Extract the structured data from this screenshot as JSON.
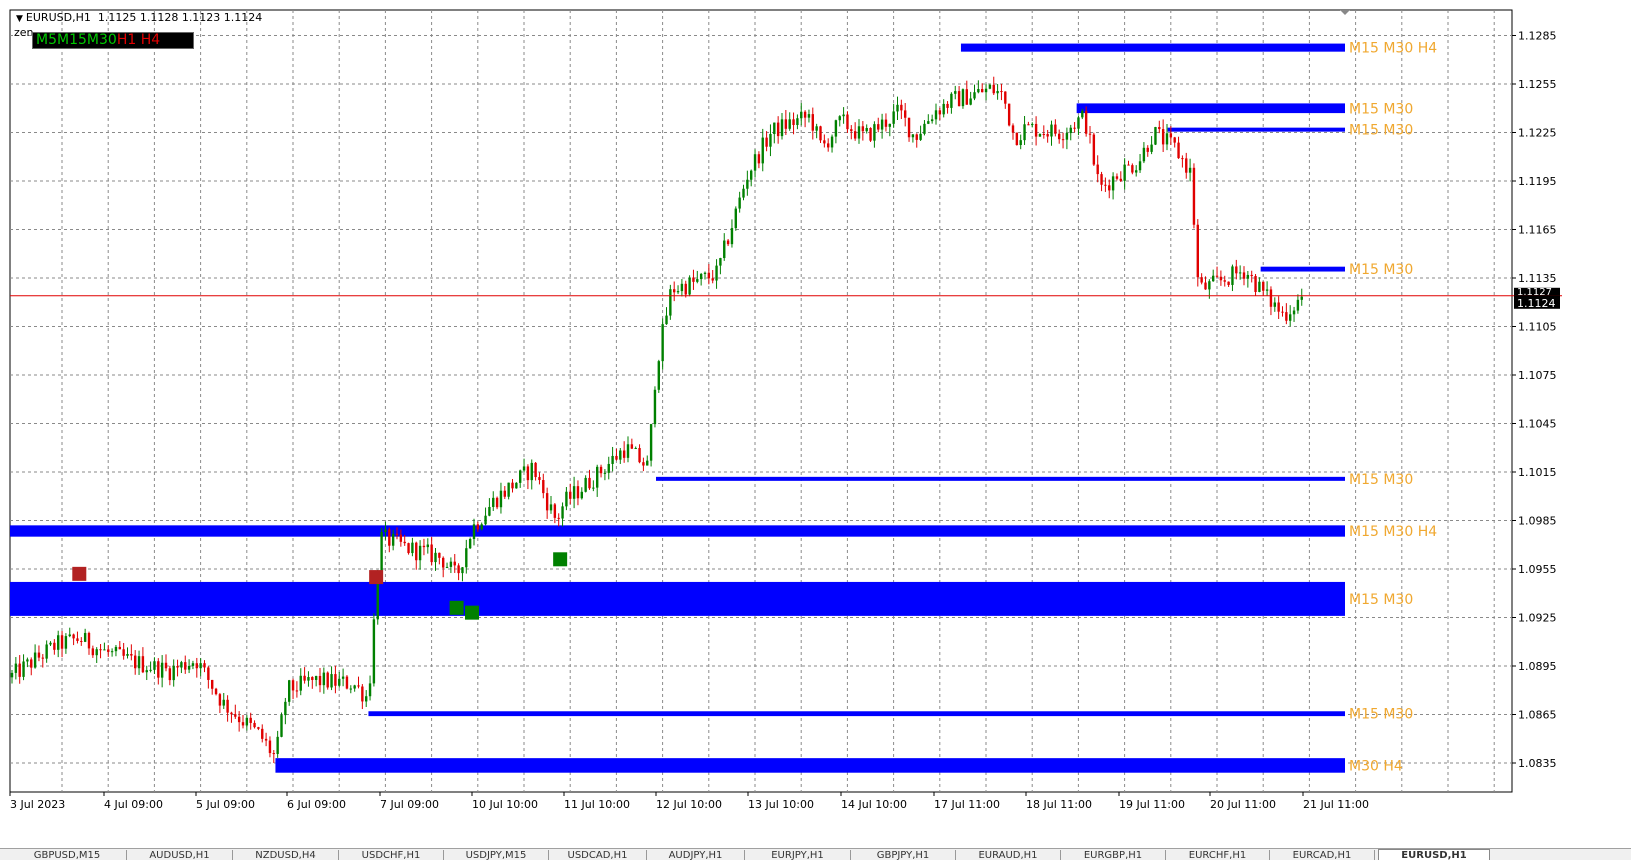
{
  "header": {
    "symbol_tf": "EURUSD,H1",
    "ohlc": "1.1125 1.1128 1.1123 1.1124",
    "indicator": "zen"
  },
  "timeframes": [
    {
      "label": "M5",
      "color": "#00c800"
    },
    {
      "label": "M15",
      "color": "#00c800"
    },
    {
      "label": "M30",
      "color": "#00c800"
    },
    {
      "label": "H1",
      "color": "#e00000"
    },
    {
      "label": "H4",
      "color": "#e00000"
    }
  ],
  "chart_data": {
    "type": "candlestick",
    "symbol": "EURUSD",
    "timeframe": "H1",
    "ylim": [
      1.0825,
      1.1295
    ],
    "y_ticks": [
      "1.1285",
      "1.1255",
      "1.1225",
      "1.1195",
      "1.1165",
      "1.1135",
      "1.1105",
      "1.1075",
      "1.1045",
      "1.1015",
      "1.0985",
      "1.0955",
      "1.0925",
      "1.0895",
      "1.0865",
      "1.0835"
    ],
    "x_ticks": [
      "3 Jul 2023",
      "4 Jul 09:00",
      "5 Jul 09:00",
      "6 Jul 09:00",
      "7 Jul 09:00",
      "10 Jul 10:00",
      "11 Jul 10:00",
      "12 Jul 10:00",
      "13 Jul 10:00",
      "14 Jul 10:00",
      "17 Jul 11:00",
      "18 Jul 11:00",
      "19 Jul 11:00",
      "20 Jul 11:00",
      "21 Jul 11:00"
    ],
    "current_price": "1.1124",
    "price_box_label": "1.1127",
    "grid": true,
    "colors": {
      "bull": "#008000",
      "bear": "#e00000",
      "zone": "#0000ff",
      "zone_label": "#f0a830",
      "price_line": "#e00000",
      "sell_marker": "#b22222",
      "buy_marker": "#008000"
    },
    "path": [
      [
        "3 Jul 2023",
        1.0888
      ],
      [
        "3 Jul 12:00",
        1.0908
      ],
      [
        "3 Jul 18:00",
        1.0912
      ],
      [
        "4 Jul 09:00",
        1.0904
      ],
      [
        "4 Jul 16:00",
        1.0898
      ],
      [
        "5 Jul 02:00",
        1.0892
      ],
      [
        "5 Jul 09:00",
        1.0899
      ],
      [
        "5 Jul 16:00",
        1.0872
      ],
      [
        "6 Jul 02:00",
        1.0852
      ],
      [
        "6 Jul 06:00",
        1.0838
      ],
      [
        "6 Jul 09:00",
        1.088
      ],
      [
        "6 Jul 16:00",
        1.0886
      ],
      [
        "7 Jul 02:00",
        1.0884
      ],
      [
        "7 Jul 06:00",
        1.0875
      ],
      [
        "7 Jul 09:00",
        1.0975
      ],
      [
        "7 Jul 16:00",
        1.0968
      ],
      [
        "10 Jul 02:00",
        1.0962
      ],
      [
        "10 Jul 06:00",
        1.095
      ],
      [
        "10 Jul 10:00",
        1.098
      ],
      [
        "10 Jul 16:00",
        1.0998
      ],
      [
        "11 Jul 02:00",
        1.1018
      ],
      [
        "11 Jul 05:00",
        1.1
      ],
      [
        "11 Jul 08:00",
        1.0985
      ],
      [
        "11 Jul 10:00",
        1.0996
      ],
      [
        "11 Jul 18:00",
        1.1012
      ],
      [
        "12 Jul 02:00",
        1.103
      ],
      [
        "12 Jul 08:00",
        1.1018
      ],
      [
        "12 Jul 10:00",
        1.108
      ],
      [
        "12 Jul 14:00",
        1.1128
      ],
      [
        "12 Jul 20:00",
        1.1132
      ],
      [
        "13 Jul 02:00",
        1.1138
      ],
      [
        "13 Jul 10:00",
        1.12
      ],
      [
        "13 Jul 16:00",
        1.1225
      ],
      [
        "13 Jul 20:00",
        1.123
      ],
      [
        "14 Jul 02:00",
        1.1235
      ],
      [
        "14 Jul 05:00",
        1.1215
      ],
      [
        "14 Jul 10:00",
        1.1232
      ],
      [
        "14 Jul 16:00",
        1.1222
      ],
      [
        "17 Jul 02:00",
        1.1238
      ],
      [
        "17 Jul 06:00",
        1.1222
      ],
      [
        "17 Jul 11:00",
        1.1238
      ],
      [
        "17 Jul 16:00",
        1.1245
      ],
      [
        "18 Jul 02:00",
        1.1252
      ],
      [
        "18 Jul 05:00",
        1.1248
      ],
      [
        "18 Jul 08:00",
        1.1222
      ],
      [
        "18 Jul 11:00",
        1.1228
      ],
      [
        "18 Jul 20:00",
        1.1225
      ],
      [
        "19 Jul 02:00",
        1.1235
      ],
      [
        "19 Jul 06:00",
        1.119
      ],
      [
        "19 Jul 11:00",
        1.12
      ],
      [
        "19 Jul 16:00",
        1.1207
      ],
      [
        "19 Jul 20:00",
        1.1225
      ],
      [
        "20 Jul 02:00",
        1.1215
      ],
      [
        "20 Jul 06:00",
        1.12
      ],
      [
        "20 Jul 08:00",
        1.1128
      ],
      [
        "20 Jul 11:00",
        1.113
      ],
      [
        "20 Jul 20:00",
        1.114
      ],
      [
        "21 Jul 02:00",
        1.1122
      ],
      [
        "21 Jul 06:00",
        1.1112
      ],
      [
        "21 Jul 11:00",
        1.1124
      ]
    ],
    "zones": [
      {
        "start": "17 Jul 18:00",
        "top": 1.128,
        "bottom": 1.1275,
        "label": "M15 M30 H4"
      },
      {
        "start": "19 Jul 00:00",
        "top": 1.1243,
        "bottom": 1.1237,
        "label": "M15 M30"
      },
      {
        "start": "20 Jul 00:00",
        "top": 1.1228,
        "bottom": 1.1226,
        "label": "M15 M30"
      },
      {
        "start": "21 Jul 00:00",
        "top": 1.1142,
        "bottom": 1.1139,
        "label": "M15 M30"
      },
      {
        "start": "12 Jul 10:00",
        "top": 1.1012,
        "bottom": 1.101,
        "label": "M15 M30"
      },
      {
        "start": "3 Jul 2023",
        "top": 1.0982,
        "bottom": 1.0975,
        "label": "M15 M30 H4"
      },
      {
        "start": "3 Jul 2023",
        "top": 1.0947,
        "bottom": 1.0926,
        "label": "M15 M30"
      },
      {
        "start": "7 Jul 06:00",
        "top": 1.0867,
        "bottom": 1.0864,
        "label": "M15 M30"
      },
      {
        "start": "6 Jul 06:00",
        "top": 1.0838,
        "bottom": 1.0829,
        "label": "M30 H4"
      }
    ],
    "markers": [
      {
        "type": "sell",
        "time": "3 Jul 18:00",
        "price": 1.0952
      },
      {
        "type": "sell",
        "time": "7 Jul 08:00",
        "price": 1.095
      },
      {
        "type": "buy",
        "time": "10 Jul 06:00",
        "price": 1.0931
      },
      {
        "type": "buy",
        "time": "10 Jul 10:00",
        "price": 1.0928
      },
      {
        "type": "buy",
        "time": "11 Jul 09:00",
        "price": 1.0961
      }
    ]
  },
  "tabs": [
    {
      "label": "GBPUSD,M15",
      "active": false
    },
    {
      "label": "AUDUSD,H1",
      "active": false
    },
    {
      "label": "NZDUSD,H4",
      "active": false
    },
    {
      "label": "USDCHF,H1",
      "active": false
    },
    {
      "label": "USDJPY,M15",
      "active": false
    },
    {
      "label": "USDCAD,H1",
      "active": false
    },
    {
      "label": "AUDJPY,H1",
      "active": false
    },
    {
      "label": "EURJPY,H1",
      "active": false
    },
    {
      "label": "GBPJPY,H1",
      "active": false
    },
    {
      "label": "EURAUD,H1",
      "active": false
    },
    {
      "label": "EURGBP,H1",
      "active": false
    },
    {
      "label": "EURCHF,H1",
      "active": false
    },
    {
      "label": "EURCAD,H1",
      "active": false
    },
    {
      "label": "EURUSD,H1",
      "active": true
    }
  ]
}
